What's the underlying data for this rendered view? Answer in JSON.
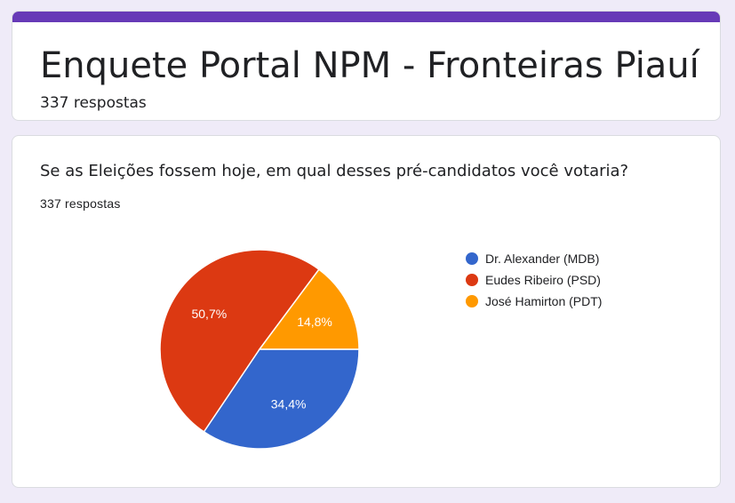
{
  "form": {
    "title": "Enquete Portal NPM - Fronteiras Piauí",
    "response_count": "337 respostas",
    "accent_color": "#673ab7"
  },
  "question": {
    "title": "Se as Eleições fossem hoje, em qual desses pré-candidatos você votaria?",
    "response_count": "337 respostas"
  },
  "chart_data": {
    "type": "pie",
    "legend_position": "right",
    "series": [
      {
        "name": "Dr. Alexander (MDB)",
        "value": 34.4,
        "label": "34,4%",
        "color": "#3366cc"
      },
      {
        "name": "Eudes Ribeiro (PSD)",
        "value": 50.7,
        "label": "50,7%",
        "color": "#dc3912"
      },
      {
        "name": "José Hamirton (PDT)",
        "value": 14.8,
        "label": "14,8%",
        "color": "#ff9900"
      }
    ]
  }
}
